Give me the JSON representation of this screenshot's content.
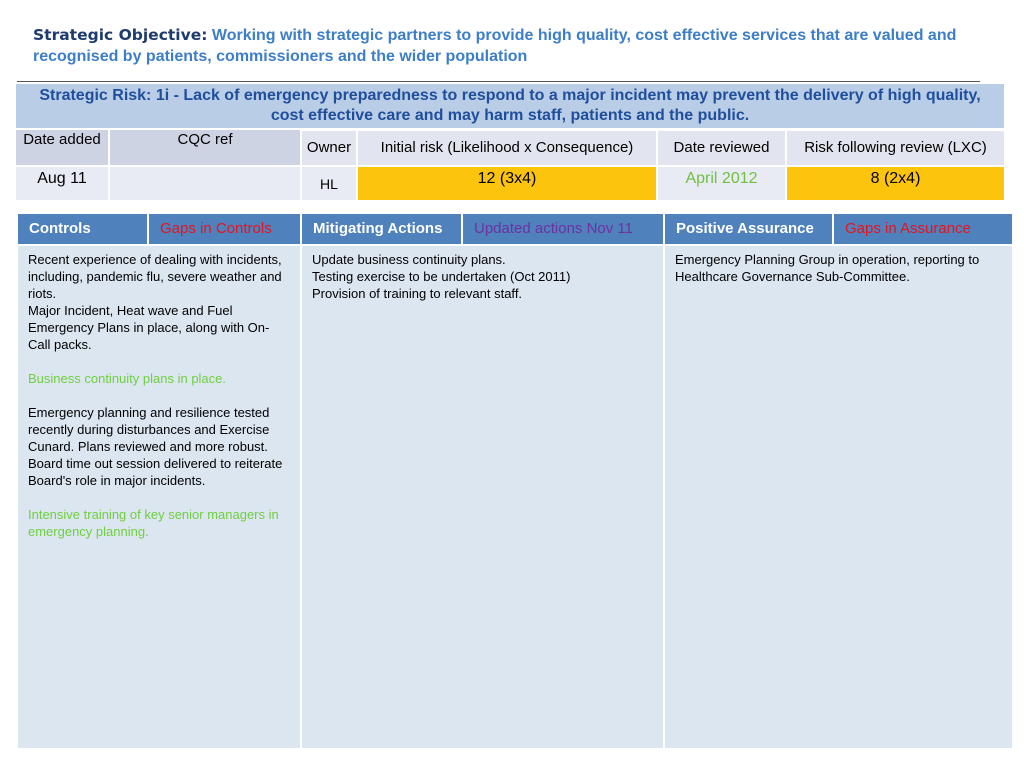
{
  "title": {
    "lead": "Strategic Objective:",
    "objective": "Working with strategic partners to provide high quality, cost effective services that are valued and recognised by patients, commissioners and the wider population"
  },
  "risk": {
    "heading": "Strategic Risk: 1i - Lack of emergency preparedness to respond to a major incident may prevent the delivery of high quality, cost effective care and may harm staff, patients and the public.",
    "headers": {
      "date_added": "Date added",
      "cqc_ref": "CQC ref",
      "owner": "Owner",
      "initial_risk": "Initial risk  (Likelihood x Consequence)",
      "date_reviewed": "Date reviewed",
      "risk_following": "Risk following review (LXC)"
    },
    "values": {
      "date_added": "Aug 11",
      "cqc_ref": "",
      "owner": "HL",
      "initial_risk": "12 (3x4)",
      "date_reviewed": "April 2012",
      "risk_following": "8 (2x4)"
    },
    "colors": {
      "amber": "#fcc40d",
      "header_blue": "#1f4e9c",
      "green_text": "#70c040"
    }
  },
  "controls": {
    "headers": {
      "controls": "Controls",
      "gaps_controls": "Gaps in Controls",
      "mitigating": "Mitigating Actions",
      "updated": "Updated actions Nov 11",
      "positive": "Positive Assurance",
      "gaps_assurance": "Gaps in Assurance"
    },
    "controls_text": {
      "p1": "Recent experience of dealing with incidents, including, pandemic flu, severe weather and riots.",
      "p2": "Major Incident, Heat wave and Fuel Emergency Plans in place, along with On-Call packs.",
      "p3": "Business continuity plans in place.",
      "p4": "Emergency planning and resilience tested recently during disturbances and Exercise Cunard.  Plans reviewed and more robust.",
      "p5": "Board time out session delivered to reiterate Board's role in major incidents.",
      "p6": "Intensive training of key senior managers in emergency planning."
    },
    "mitigating_text": {
      "l1": "Update business continuity plans.",
      "l2": "Testing exercise to be undertaken (Oct 2011)",
      "l3": "Provision of training to relevant staff."
    },
    "assurance_text": "Emergency Planning Group in operation, reporting to Healthcare Governance Sub-Committee.",
    "colors": {
      "header_bg": "#4f81bd",
      "body_bg": "#dce6f1",
      "gap_red": "#e8131b",
      "updated_purple": "#7030a0",
      "green": "#6fcf3f"
    }
  }
}
